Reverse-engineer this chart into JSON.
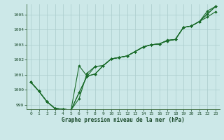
{
  "title": "Graphe pression niveau de la mer (hPa)",
  "bg_color": "#cce8e8",
  "plot_bg_color": "#cce8e8",
  "grid_color": "#aacccc",
  "line_color": "#1a6b2a",
  "marker_color": "#1a6b2a",
  "xlim": [
    -0.5,
    23.5
  ],
  "ylim": [
    998.7,
    1005.7
  ],
  "yticks": [
    999,
    1000,
    1001,
    1002,
    1003,
    1004,
    1005
  ],
  "xticks": [
    0,
    1,
    2,
    3,
    4,
    5,
    6,
    7,
    8,
    9,
    10,
    11,
    12,
    13,
    14,
    15,
    16,
    17,
    18,
    19,
    20,
    21,
    22,
    23
  ],
  "series": [
    [
      1000.5,
      999.9,
      999.2,
      998.75,
      998.7,
      998.65,
      999.4,
      1001.1,
      1001.55,
      1001.6,
      1002.05,
      1002.15,
      1002.25,
      1002.55,
      1002.85,
      1003.0,
      1003.05,
      1003.3,
      1003.35,
      1004.15,
      1004.25,
      1004.55,
      1005.25,
      1005.55
    ],
    [
      1000.5,
      999.9,
      999.2,
      998.75,
      998.7,
      998.65,
      1001.6,
      1000.9,
      1001.55,
      1001.6,
      1002.05,
      1002.15,
      1002.25,
      1002.55,
      1002.85,
      1003.0,
      1003.05,
      1003.25,
      1003.35,
      1004.15,
      1004.25,
      1004.55,
      1004.85,
      1005.2
    ],
    [
      1000.5,
      999.9,
      999.2,
      998.75,
      998.7,
      998.65,
      999.8,
      1000.9,
      1001.05,
      1001.6,
      1002.05,
      1002.15,
      1002.25,
      1002.55,
      1002.85,
      1003.0,
      1003.05,
      1003.28,
      1003.35,
      1004.15,
      1004.25,
      1004.55,
      1005.05,
      1005.55
    ],
    [
      1000.5,
      999.9,
      999.2,
      998.75,
      998.7,
      998.65,
      999.8,
      1000.9,
      1001.05,
      1001.6,
      1002.05,
      1002.15,
      1002.25,
      1002.55,
      1002.85,
      1003.0,
      1003.05,
      1003.28,
      1003.35,
      1004.15,
      1004.25,
      1004.55,
      1005.05,
      1005.55
    ]
  ]
}
